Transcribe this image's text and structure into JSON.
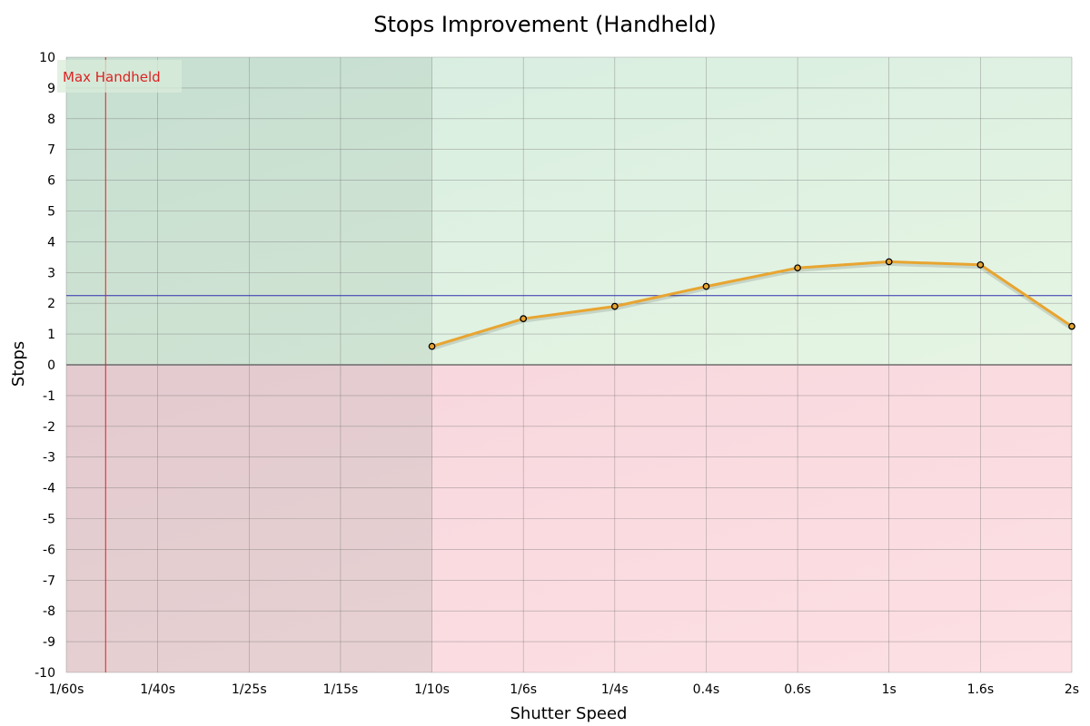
{
  "chart_data": {
    "type": "line",
    "title": "Stops Improvement (Handheld)",
    "xlabel": "Shutter Speed",
    "ylabel": "Stops",
    "categories": [
      "1/60s",
      "1/40s",
      "1/25s",
      "1/15s",
      "1/10s",
      "1/6s",
      "1/4s",
      "0.4s",
      "0.6s",
      "1s",
      "1.6s",
      "2s"
    ],
    "ylim": [
      -10,
      10
    ],
    "yticks": [
      -10,
      -9,
      -8,
      -7,
      -6,
      -5,
      -4,
      -3,
      -2,
      -1,
      0,
      1,
      2,
      3,
      4,
      5,
      6,
      7,
      8,
      9,
      10
    ],
    "grid": true,
    "series": [
      {
        "values": [
          null,
          null,
          null,
          null,
          0.6,
          1.5,
          1.9,
          2.55,
          3.15,
          3.35,
          3.25,
          1.25
        ],
        "color": "#e8a530"
      }
    ],
    "reference_line": {
      "y": 2.25,
      "color": "#2f2fb0"
    },
    "max_handheld": {
      "label": "Max Handheld",
      "x_category_index": 0.43,
      "color": "#dd2222"
    },
    "shaded_until_category_index": 4,
    "colors": {
      "positive_band": "#ddf0e3",
      "negative_band": "#f9d9de",
      "shade_overlay": "#5a7a6a",
      "grid": "#777777",
      "zero_line": "#555555"
    }
  }
}
